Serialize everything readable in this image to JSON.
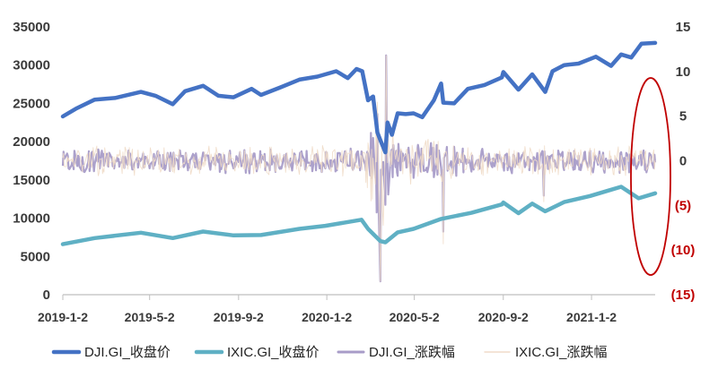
{
  "chart_data": {
    "type": "line",
    "axes": {
      "y_left": {
        "min": 0,
        "max": 35000,
        "ticks": [
          0,
          5000,
          10000,
          15000,
          20000,
          25000,
          30000,
          35000
        ],
        "tick_labels": [
          "0",
          "5000",
          "10000",
          "15000",
          "20000",
          "25000",
          "30000",
          "35000"
        ]
      },
      "y_right": {
        "min": -15,
        "max": 15,
        "ticks": [
          15,
          10,
          5,
          0,
          -5,
          -10,
          -15
        ],
        "tick_labels": [
          "15",
          "10",
          "5",
          "0",
          "(5)",
          "(10)",
          "(15)"
        ],
        "negative_label_color": "#c00000",
        "positive_label_color": "#3a3a3a"
      },
      "x": {
        "min": "2019-01-02",
        "max": "2021-03-31",
        "ticks": [
          "2019-01-02",
          "2019-05-02",
          "2019-09-02",
          "2020-01-02",
          "2020-05-02",
          "2020-09-02",
          "2021-01-02"
        ],
        "tick_labels": [
          "2019-1-2",
          "2019-5-2",
          "2019-9-2",
          "2020-1-2",
          "2020-5-2",
          "2020-9-2",
          "2021-1-2"
        ]
      }
    },
    "legend_position": "bottom",
    "grid": false,
    "annotation": {
      "shape": "ellipse",
      "color": "#c00000",
      "note": "red ellipse around right-end returns"
    },
    "series": [
      {
        "name": "DJI.GI_收盘价",
        "axis": "left",
        "color": "#4472c4",
        "style": "thick",
        "points": [
          [
            "2019-01-02",
            23300
          ],
          [
            "2019-01-20",
            24300
          ],
          [
            "2019-02-15",
            25500
          ],
          [
            "2019-03-15",
            25700
          ],
          [
            "2019-04-20",
            26500
          ],
          [
            "2019-05-10",
            26000
          ],
          [
            "2019-06-03",
            24900
          ],
          [
            "2019-06-20",
            26600
          ],
          [
            "2019-07-15",
            27300
          ],
          [
            "2019-08-05",
            26000
          ],
          [
            "2019-08-26",
            25800
          ],
          [
            "2019-09-20",
            26900
          ],
          [
            "2019-10-03",
            26100
          ],
          [
            "2019-10-30",
            27100
          ],
          [
            "2019-11-25",
            28100
          ],
          [
            "2019-12-20",
            28500
          ],
          [
            "2020-01-15",
            29200
          ],
          [
            "2020-01-31",
            28300
          ],
          [
            "2020-02-12",
            29500
          ],
          [
            "2020-02-20",
            29200
          ],
          [
            "2020-02-28",
            25400
          ],
          [
            "2020-03-06",
            25900
          ],
          [
            "2020-03-12",
            21200
          ],
          [
            "2020-03-16",
            20200
          ],
          [
            "2020-03-23",
            18600
          ],
          [
            "2020-03-26",
            22500
          ],
          [
            "2020-04-01",
            20900
          ],
          [
            "2020-04-09",
            23700
          ],
          [
            "2020-04-20",
            23600
          ],
          [
            "2020-05-01",
            23700
          ],
          [
            "2020-05-13",
            23200
          ],
          [
            "2020-05-29",
            25400
          ],
          [
            "2020-06-08",
            27600
          ],
          [
            "2020-06-11",
            25100
          ],
          [
            "2020-06-26",
            25000
          ],
          [
            "2020-07-15",
            26900
          ],
          [
            "2020-08-07",
            27400
          ],
          [
            "2020-08-31",
            28400
          ],
          [
            "2020-09-02",
            29100
          ],
          [
            "2020-09-23",
            26800
          ],
          [
            "2020-10-12",
            28800
          ],
          [
            "2020-10-30",
            26500
          ],
          [
            "2020-11-09",
            29200
          ],
          [
            "2020-11-25",
            30000
          ],
          [
            "2020-12-15",
            30200
          ],
          [
            "2021-01-08",
            31100
          ],
          [
            "2021-01-29",
            29900
          ],
          [
            "2021-02-12",
            31400
          ],
          [
            "2021-02-26",
            31000
          ],
          [
            "2021-03-12",
            32800
          ],
          [
            "2021-03-31",
            32900
          ]
        ]
      },
      {
        "name": "IXIC.GI_收盘价",
        "axis": "left",
        "color": "#5fb0c4",
        "style": "thick",
        "points": [
          [
            "2019-01-02",
            6600
          ],
          [
            "2019-02-15",
            7400
          ],
          [
            "2019-04-20",
            8100
          ],
          [
            "2019-06-03",
            7400
          ],
          [
            "2019-07-15",
            8250
          ],
          [
            "2019-08-26",
            7750
          ],
          [
            "2019-10-03",
            7800
          ],
          [
            "2019-11-25",
            8600
          ],
          [
            "2019-12-31",
            9000
          ],
          [
            "2020-02-19",
            9800
          ],
          [
            "2020-02-28",
            8600
          ],
          [
            "2020-03-16",
            7000
          ],
          [
            "2020-03-23",
            6850
          ],
          [
            "2020-04-09",
            8150
          ],
          [
            "2020-05-01",
            8600
          ],
          [
            "2020-06-08",
            9900
          ],
          [
            "2020-07-20",
            10700
          ],
          [
            "2020-08-31",
            11800
          ],
          [
            "2020-09-02",
            12050
          ],
          [
            "2020-09-23",
            10650
          ],
          [
            "2020-10-12",
            11900
          ],
          [
            "2020-10-30",
            10900
          ],
          [
            "2020-11-25",
            12100
          ],
          [
            "2020-12-31",
            12900
          ],
          [
            "2021-01-25",
            13600
          ],
          [
            "2021-02-12",
            14100
          ],
          [
            "2021-03-08",
            12600
          ],
          [
            "2021-03-31",
            13250
          ]
        ]
      },
      {
        "name": "DJI.GI_涨跌幅",
        "axis": "right",
        "color": "#a89cc8",
        "style": "volatile",
        "volatility_units": "%"
      },
      {
        "name": "IXIC.GI_涨跌幅",
        "axis": "right",
        "color": "#f0dcc8",
        "style": "volatile-thin",
        "volatility_units": "%"
      }
    ],
    "legend": [
      {
        "label": "DJI.GI_收盘价",
        "color": "#4472c4"
      },
      {
        "label": "IXIC.GI_收盘价",
        "color": "#5fb0c4"
      },
      {
        "label": "DJI.GI_涨跌幅",
        "color": "#a89cc8"
      },
      {
        "label": "IXIC.GI_涨跌幅",
        "color": "#f0dcc8"
      }
    ]
  }
}
